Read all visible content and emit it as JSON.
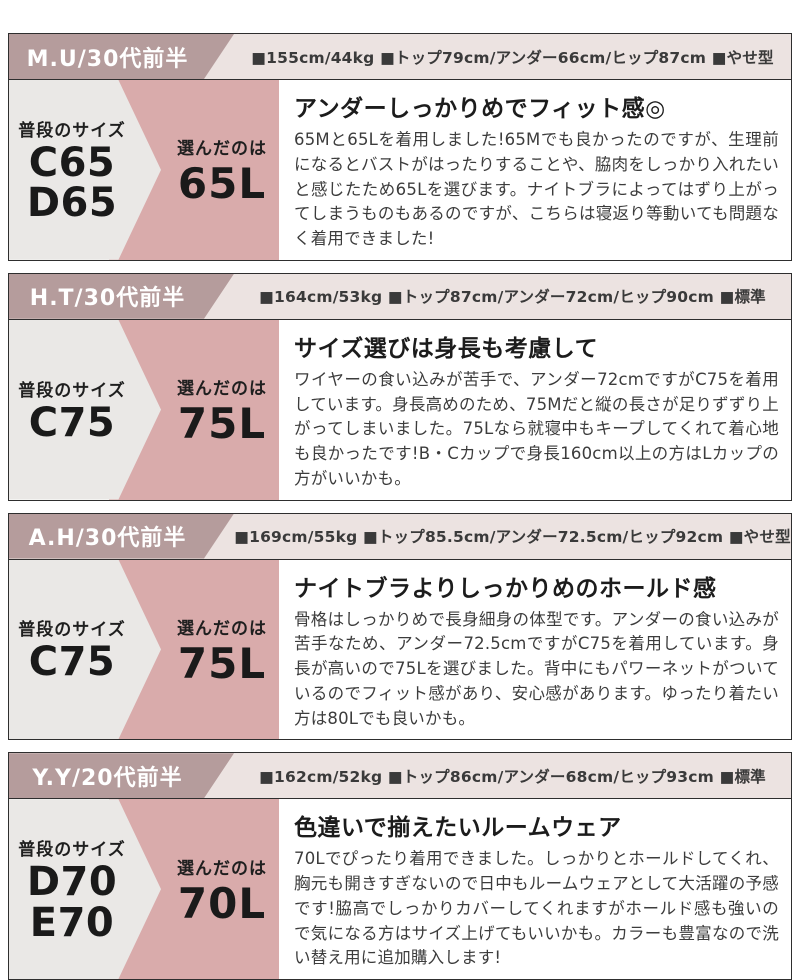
{
  "colors": {
    "tag_bg": "#b59c9c",
    "header_bg": "#ece3e1",
    "pink_bg": "#d9abab",
    "gray_bg": "#eae8e6",
    "border": "#2e2e2e"
  },
  "labels": {
    "usual_size": "普段のサイズ",
    "chosen": "選んだのは"
  },
  "sections": [
    {
      "person": "M.U/30代前半",
      "stats": "■155cm/44kg ■トップ79cm/アンダー66cm/ヒップ87cm ■やせ型",
      "usual_sizes": [
        "C65",
        "D65"
      ],
      "chosen_size": "65L",
      "review_title": "アンダーしっかりめでフィット感◎",
      "review_body": "65Mと65Lを着用しました!65Mでも良かったのですが、生理前になるとバストがはったりすることや、脇肉をしっかり入れたいと感じたため65Lを選びます。ナイトブラによってはずり上がってしまうものもあるのですが、こちらは寝返り等動いても問題なく着用できました!"
    },
    {
      "person": "H.T/30代前半",
      "stats": "■164cm/53kg ■トップ87cm/アンダー72cm/ヒップ90cm ■標準",
      "usual_sizes": [
        "C75"
      ],
      "chosen_size": "75L",
      "review_title": "サイズ選びは身長も考慮して",
      "review_body": "ワイヤーの食い込みが苦手で、アンダー72cmですがC75を着用しています。身長高めのため、75Mだと縦の長さが足りずずり上がってしまいました。75Lなら就寝中もキープしてくれて着心地も良かったです!B・Cカップで身長160cm以上の方はLカップの方がいいかも。"
    },
    {
      "person": "A.H/30代前半",
      "stats": "■169cm/55kg ■トップ85.5cm/アンダー72.5cm/ヒップ92cm ■やせ型",
      "usual_sizes": [
        "C75"
      ],
      "chosen_size": "75L",
      "review_title": "ナイトブラよりしっかりめのホールド感",
      "review_body": "骨格はしっかりめで長身細身の体型です。アンダーの食い込みが苦手なため、アンダー72.5cmですがC75を着用しています。身長が高いので75Lを選びました。背中にもパワーネットがついているのでフィット感があり、安心感があります。ゆったり着たい方は80Lでも良いかも。"
    },
    {
      "person": "Y.Y/20代前半",
      "stats": "■162cm/52kg ■トップ86cm/アンダー68cm/ヒップ93cm ■標準",
      "usual_sizes": [
        "D70",
        "E70"
      ],
      "chosen_size": "70L",
      "review_title": "色違いで揃えたいルームウェア",
      "review_body": "70Lでぴったり着用できました。しっかりとホールドしてくれ、胸元も開きすぎないので日中もルームウェアとして大活躍の予感です!脇高でしっかりカバーしてくれますがホールド感も強いので気になる方はサイズ上げてもいいかも。カラーも豊富なので洗い替え用に追加購入します!"
    }
  ]
}
